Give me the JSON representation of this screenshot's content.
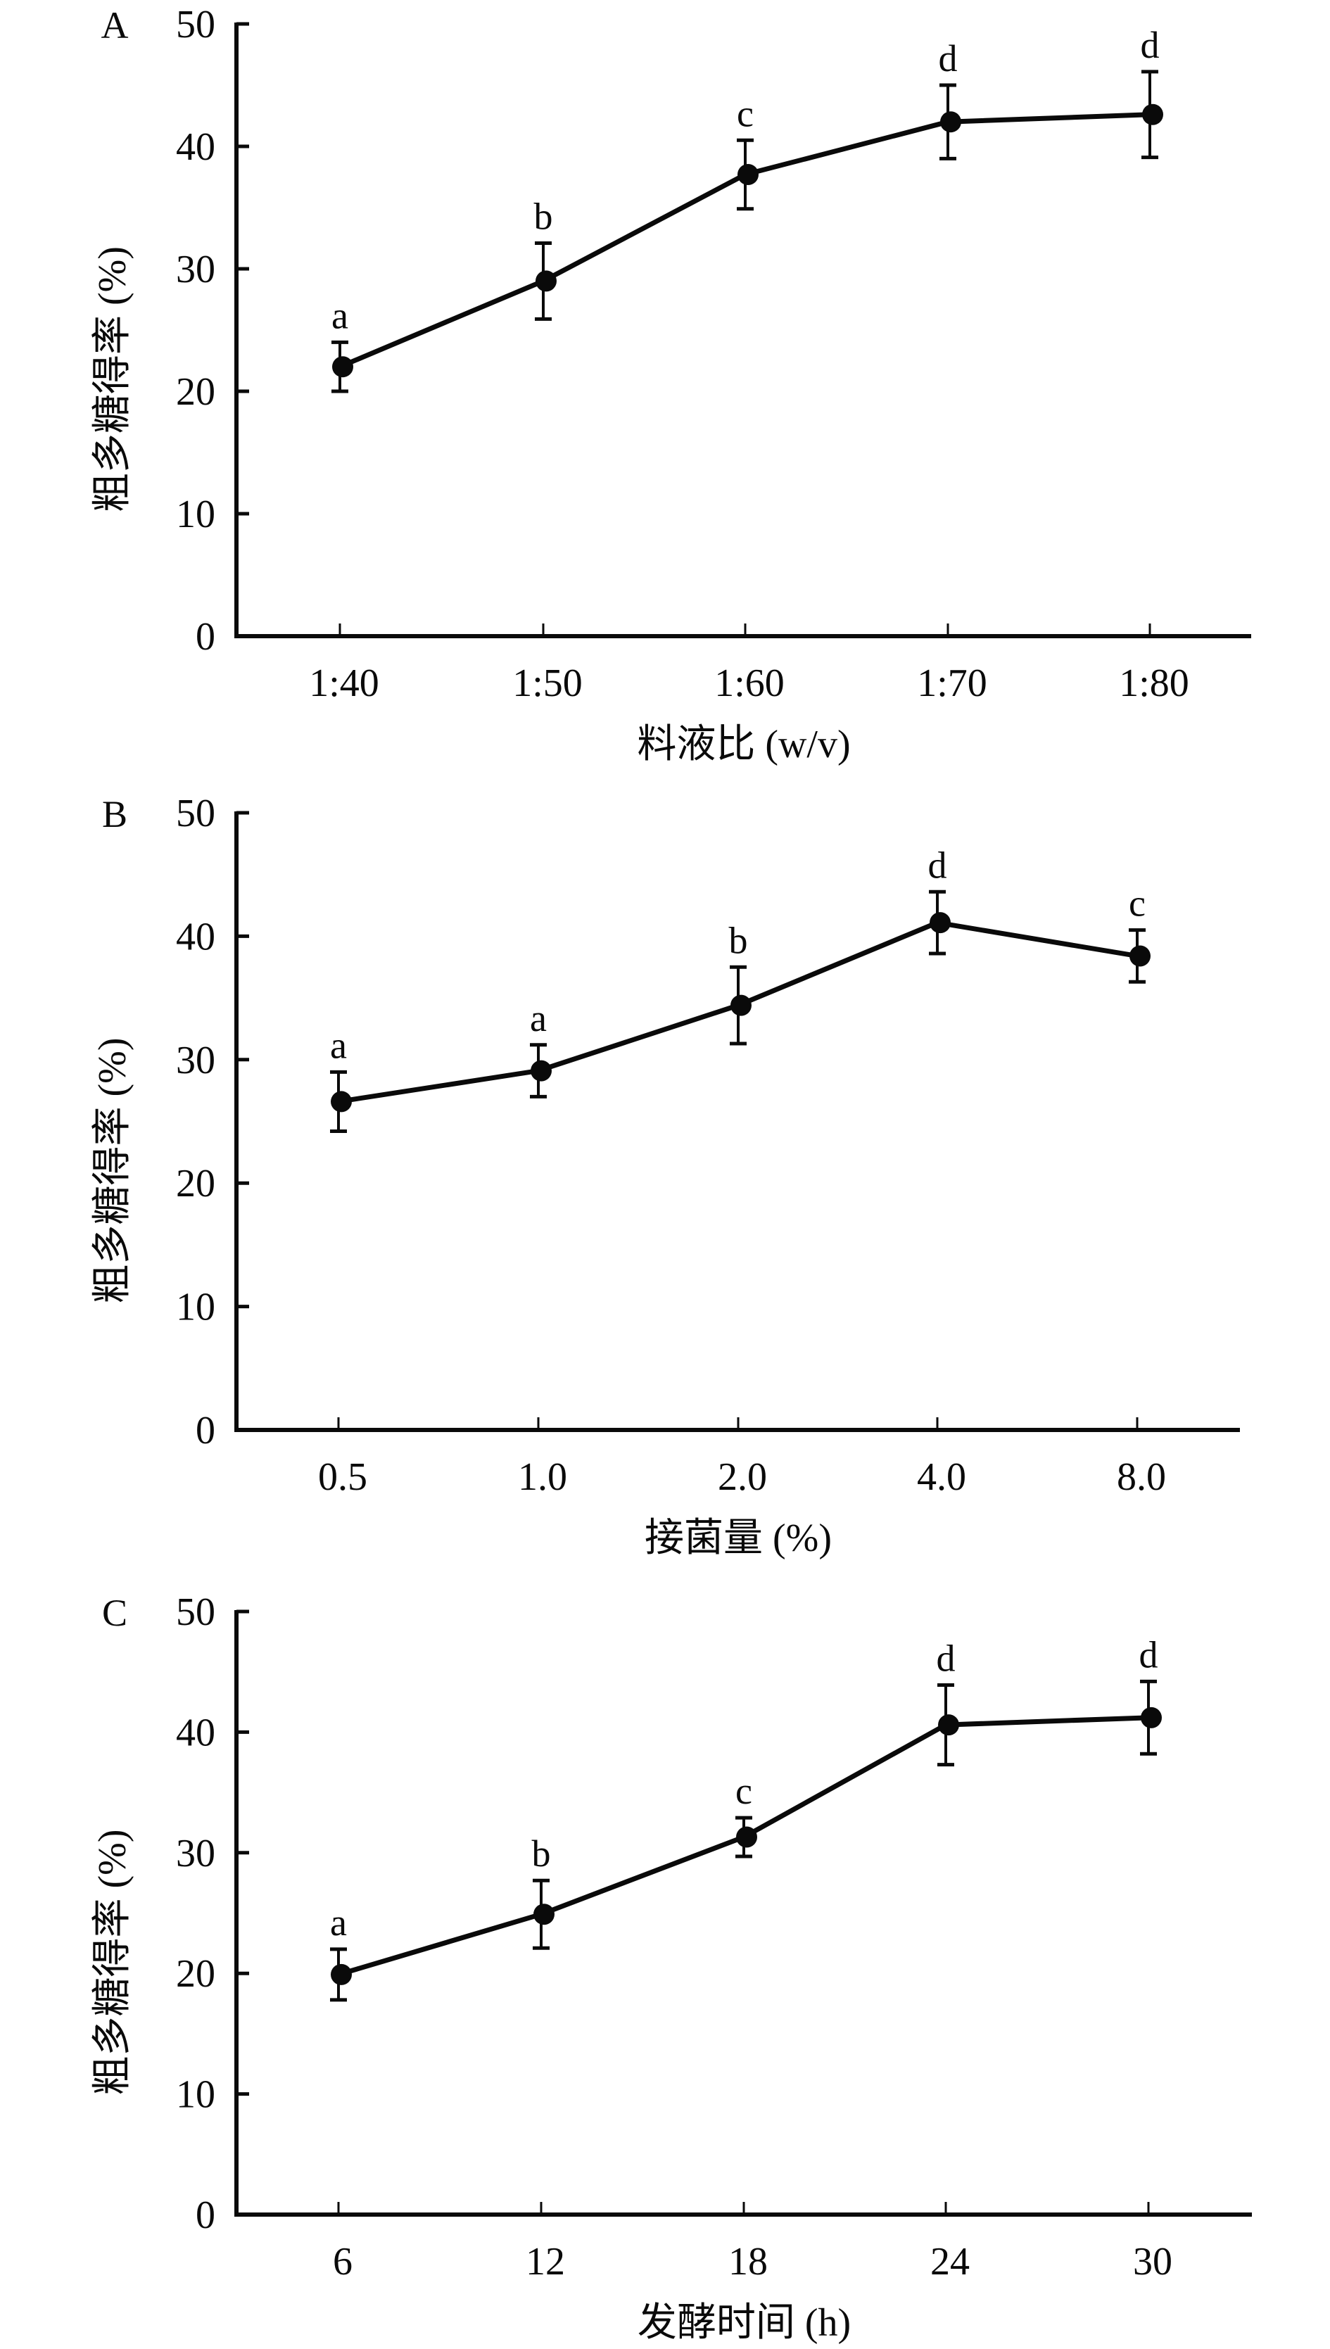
{
  "chart_data": [
    {
      "type": "line",
      "panel_label": "A",
      "xlabel": "料液比 (w/v)",
      "ylabel": "粗多糖得率 (%)",
      "categories": [
        "1:40",
        "1:50",
        "1:60",
        "1:70",
        "1:80"
      ],
      "values": [
        22.0,
        29.0,
        37.7,
        42.0,
        42.6
      ],
      "errors": [
        2.0,
        3.1,
        2.8,
        3.0,
        3.5
      ],
      "significance": [
        "a",
        "b",
        "c",
        "d",
        "d"
      ],
      "ylim": [
        0,
        50
      ],
      "yticks": [
        0,
        10,
        20,
        30,
        40,
        50
      ],
      "grid": false,
      "legend": "none"
    },
    {
      "type": "line",
      "panel_label": "B",
      "xlabel": "接菌量 (%)",
      "ylabel": "粗多糖得率 (%)",
      "categories": [
        "0.5",
        "1.0",
        "2.0",
        "4.0",
        "8.0"
      ],
      "values": [
        26.6,
        29.1,
        34.4,
        41.1,
        38.4
      ],
      "errors": [
        2.4,
        2.1,
        3.1,
        2.5,
        2.1
      ],
      "significance": [
        "a",
        "a",
        "b",
        "d",
        "c"
      ],
      "ylim": [
        0,
        50
      ],
      "yticks": [
        0,
        10,
        20,
        30,
        40,
        50
      ],
      "grid": false,
      "legend": "none"
    },
    {
      "type": "line",
      "panel_label": "C",
      "xlabel": "发酵时间 (h)",
      "ylabel": "粗多糖得率 (%)",
      "categories": [
        "6",
        "12",
        "18",
        "24",
        "30"
      ],
      "values": [
        19.9,
        24.9,
        31.3,
        40.6,
        41.2
      ],
      "errors": [
        2.1,
        2.8,
        1.6,
        3.3,
        3.0
      ],
      "significance": [
        "a",
        "b",
        "c",
        "d",
        "d"
      ],
      "ylim": [
        0,
        50
      ],
      "yticks": [
        0,
        10,
        20,
        30,
        40,
        50
      ],
      "grid": false,
      "legend": "none"
    }
  ],
  "colors": {
    "ink": "#0a0a0a",
    "background": "#ffffff"
  }
}
